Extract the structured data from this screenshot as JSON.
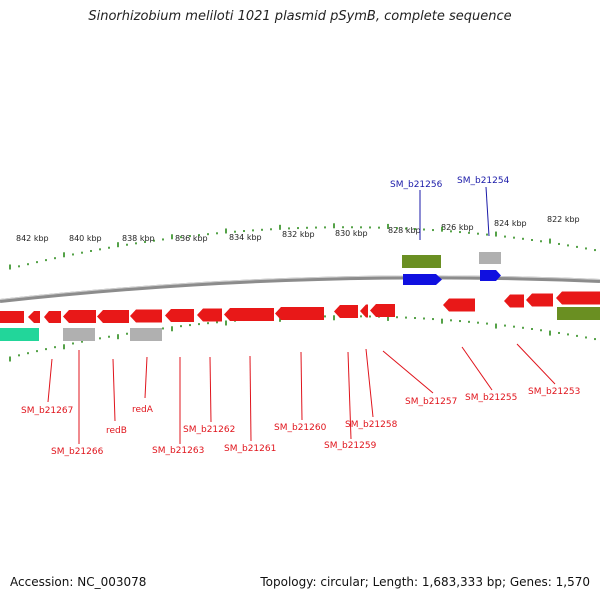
{
  "title": "Sinorhizobium meliloti 1021 plasmid pSymB, complete sequence",
  "footer": {
    "accession": "Accession: NC_003078",
    "summary": "Topology: circular; Length: 1,683,333 bp; Genes: 1,570"
  },
  "scale_labels": [
    "842 kbp",
    "840 kbp",
    "838 kbp",
    "836 kbp",
    "834 kbp",
    "832 kbp",
    "830 kbp",
    "828 kbp",
    "826 kbp",
    "824 kbp",
    "822 kbp"
  ],
  "gene_labels": {
    "top": [
      "SM_b21256",
      "SM_b21254"
    ],
    "bottom": [
      "SM_b21267",
      "SM_b21266",
      "redB",
      "redA",
      "SM_b21263",
      "SM_b21262",
      "SM_b21261",
      "SM_b21260",
      "SM_b21259",
      "SM_b21258",
      "SM_b21257",
      "SM_b21255",
      "SM_b21253"
    ]
  },
  "colors": {
    "cds": "#e81818",
    "blue_feature": "#1010e0",
    "grey_feature": "#b0b0b0",
    "olive_feature": "#6a8f22",
    "teal_feature": "#22d69a",
    "ticks": "#2a8a1a",
    "red_label": "#e0141c",
    "blue_label": "#1a1aa8",
    "backbone": "#9a9a9a"
  }
}
